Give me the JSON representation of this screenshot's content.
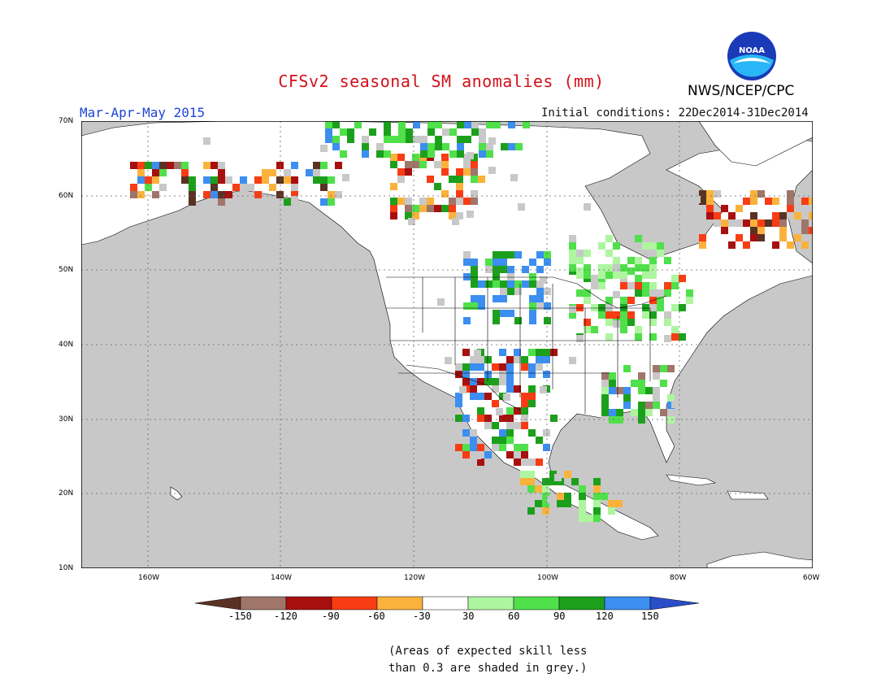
{
  "title": "CFSv2 seasonal SM anomalies (mm)",
  "season": "Mar-Apr-May 2015",
  "initial_conditions": "Initial conditions: 22Dec2014-31Dec2014",
  "agency": "NWS/NCEP/CPC",
  "logo_text": "NOAA",
  "lat_labels": [
    "70N",
    "60N",
    "50N",
    "40N",
    "30N",
    "20N",
    "10N"
  ],
  "lon_labels": [
    "160W",
    "140W",
    "120W",
    "100W",
    "80W",
    "60W"
  ],
  "colorbar": {
    "tick_labels": [
      "-150",
      "-120",
      "-90",
      "-60",
      "-30",
      "30",
      "60",
      "90",
      "120",
      "150"
    ],
    "colors": [
      "#5a3223",
      "#a0756a",
      "#a80f0f",
      "#f83c14",
      "#fbb23c",
      "#ffffff",
      "#aef5a0",
      "#4fe04a",
      "#1ca01c",
      "#3c8ef0",
      "#2a4ec8"
    ]
  },
  "grey_shade_color": "#c8c8c8",
  "note_line1": "(Areas of expected skill less",
  "note_line2": "than 0.3 are shaded in grey.)"
}
